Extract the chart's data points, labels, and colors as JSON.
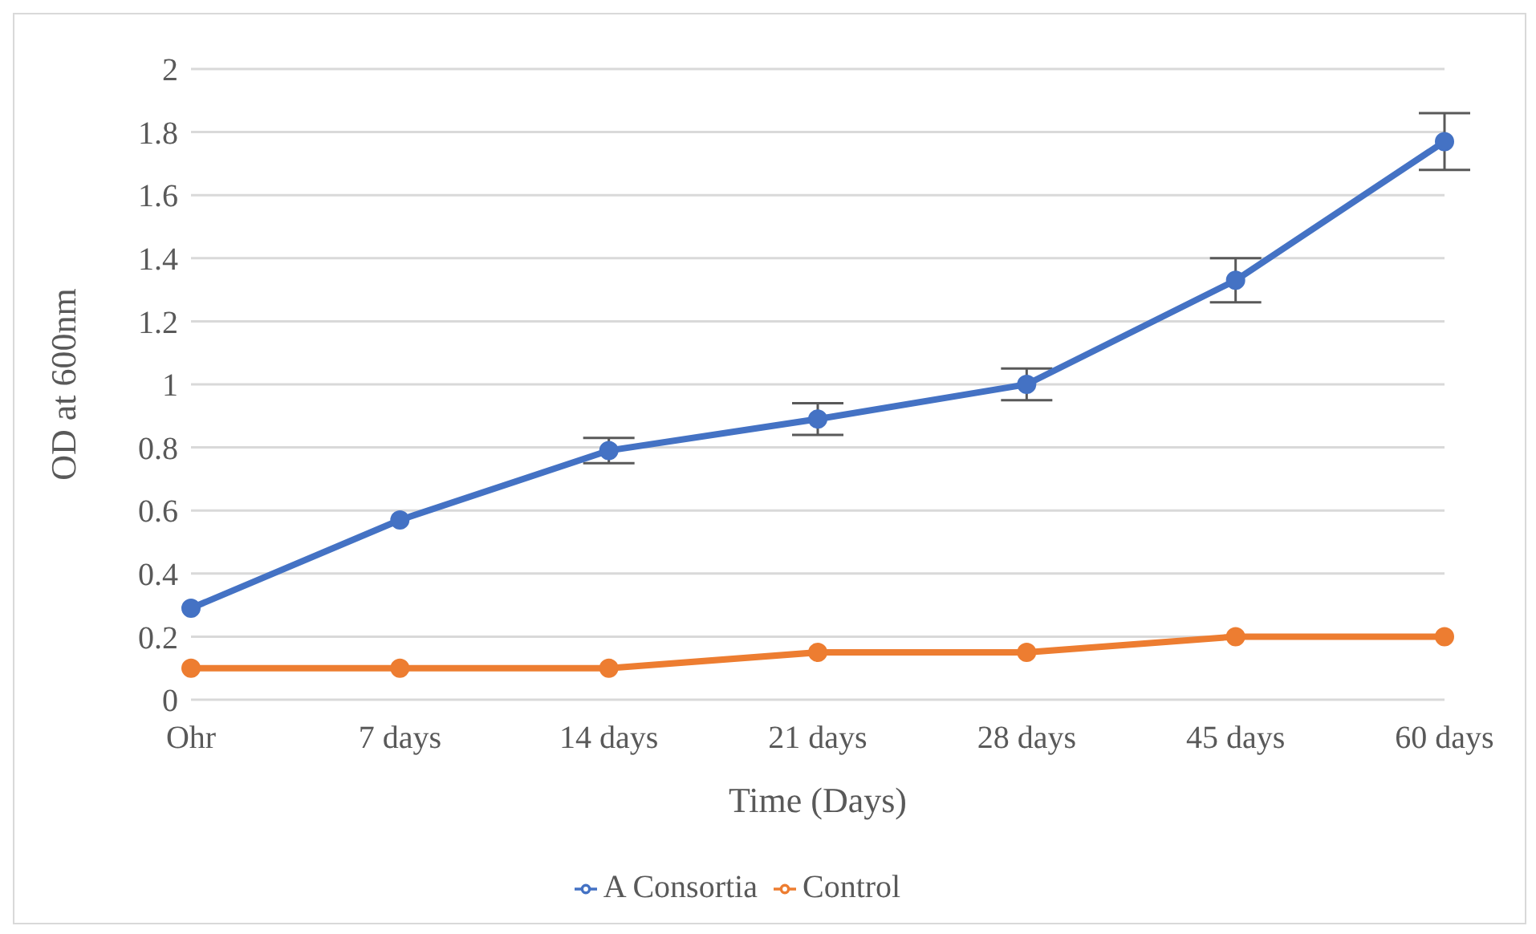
{
  "chart_data": {
    "type": "line",
    "xlabel": "Time (Days)",
    "ylabel": "OD at 600nm",
    "categories": [
      "Ohr",
      "7 days",
      "14 days",
      "21 days",
      "28 days",
      "45 days",
      "60 days"
    ],
    "series": [
      {
        "name": "A Consortia",
        "color": "#4472c4",
        "values": [
          0.29,
          0.57,
          0.79,
          0.89,
          1.0,
          1.33,
          1.77
        ],
        "errors": [
          null,
          null,
          0.04,
          0.05,
          0.05,
          0.07,
          0.09
        ]
      },
      {
        "name": "Control",
        "color": "#ed7d31",
        "values": [
          0.1,
          0.1,
          0.1,
          0.15,
          0.15,
          0.2,
          0.2
        ]
      }
    ],
    "ylim": [
      0,
      2
    ],
    "yticks": [
      0,
      0.2,
      0.4,
      0.6,
      0.8,
      1,
      1.2,
      1.4,
      1.6,
      1.8,
      2
    ],
    "grid": "y",
    "legend": "bottom",
    "marker": "circle",
    "line_style": "solid"
  }
}
